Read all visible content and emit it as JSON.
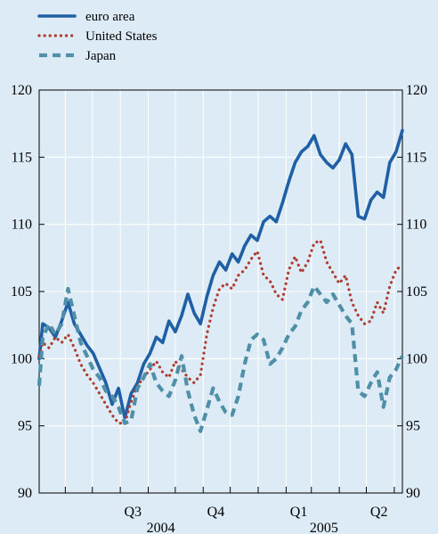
{
  "chart_data": {
    "type": "line",
    "title": "",
    "xlabel": "",
    "ylabel": "",
    "ylim": [
      90,
      120
    ],
    "yticks": [
      90,
      95,
      100,
      105,
      110,
      115,
      120
    ],
    "y_axis_sides": "both",
    "grid": true,
    "legend_placement": "top-left",
    "x_range": [
      "2004-05-03",
      "2005-06-10"
    ],
    "quarter_ticks": [
      {
        "label": "Q3",
        "date": "2004-08-15"
      },
      {
        "label": "Q4",
        "date": "2004-11-15"
      },
      {
        "label": "Q1",
        "date": "2005-02-15"
      },
      {
        "label": "Q2",
        "date": "2005-05-15"
      }
    ],
    "year_labels": [
      {
        "label": "2004",
        "date": "2004-09-15"
      },
      {
        "label": "2005",
        "date": "2005-03-15"
      }
    ],
    "series": [
      {
        "name": "euro area",
        "color": "#1f5fa6",
        "style": "solid",
        "points": [
          [
            "2004-05-03",
            100.0
          ],
          [
            "2004-05-07",
            102.6
          ],
          [
            "2004-05-14",
            102.3
          ],
          [
            "2004-05-21",
            101.6
          ],
          [
            "2004-05-28",
            102.8
          ],
          [
            "2004-06-04",
            104.2
          ],
          [
            "2004-06-11",
            102.6
          ],
          [
            "2004-06-18",
            101.8
          ],
          [
            "2004-06-25",
            101.0
          ],
          [
            "2004-07-02",
            100.4
          ],
          [
            "2004-07-09",
            99.3
          ],
          [
            "2004-07-16",
            98.2
          ],
          [
            "2004-07-23",
            96.6
          ],
          [
            "2004-07-30",
            97.8
          ],
          [
            "2004-08-06",
            95.6
          ],
          [
            "2004-08-13",
            97.4
          ],
          [
            "2004-08-20",
            98.2
          ],
          [
            "2004-08-27",
            99.6
          ],
          [
            "2004-09-03",
            100.4
          ],
          [
            "2004-09-10",
            101.6
          ],
          [
            "2004-09-17",
            101.2
          ],
          [
            "2004-09-24",
            102.8
          ],
          [
            "2004-10-01",
            102.0
          ],
          [
            "2004-10-08",
            103.2
          ],
          [
            "2004-10-15",
            104.8
          ],
          [
            "2004-10-22",
            103.4
          ],
          [
            "2004-10-29",
            102.6
          ],
          [
            "2004-11-05",
            104.6
          ],
          [
            "2004-11-12",
            106.2
          ],
          [
            "2004-11-19",
            107.2
          ],
          [
            "2004-11-26",
            106.6
          ],
          [
            "2004-12-03",
            107.8
          ],
          [
            "2004-12-10",
            107.2
          ],
          [
            "2004-12-17",
            108.4
          ],
          [
            "2004-12-24",
            109.2
          ],
          [
            "2004-12-31",
            108.8
          ],
          [
            "2005-01-07",
            110.2
          ],
          [
            "2005-01-14",
            110.6
          ],
          [
            "2005-01-21",
            110.2
          ],
          [
            "2005-01-28",
            111.6
          ],
          [
            "2005-02-04",
            113.2
          ],
          [
            "2005-02-11",
            114.6
          ],
          [
            "2005-02-18",
            115.4
          ],
          [
            "2005-02-25",
            115.8
          ],
          [
            "2005-03-04",
            116.6
          ],
          [
            "2005-03-11",
            115.2
          ],
          [
            "2005-03-18",
            114.6
          ],
          [
            "2005-03-25",
            114.2
          ],
          [
            "2005-04-01",
            114.8
          ],
          [
            "2005-04-08",
            116.0
          ],
          [
            "2005-04-15",
            115.2
          ],
          [
            "2005-04-22",
            110.6
          ],
          [
            "2005-04-29",
            110.4
          ],
          [
            "2005-05-06",
            111.8
          ],
          [
            "2005-05-13",
            112.4
          ],
          [
            "2005-05-20",
            112.0
          ],
          [
            "2005-05-27",
            114.6
          ],
          [
            "2005-06-03",
            115.4
          ],
          [
            "2005-06-10",
            117.0
          ]
        ]
      },
      {
        "name": "United States",
        "color": "#b03a2e",
        "style": "dotted",
        "points": [
          [
            "2004-05-03",
            100.2
          ],
          [
            "2004-05-07",
            101.2
          ],
          [
            "2004-05-14",
            100.8
          ],
          [
            "2004-05-21",
            101.6
          ],
          [
            "2004-05-28",
            101.2
          ],
          [
            "2004-06-04",
            101.8
          ],
          [
            "2004-06-11",
            100.8
          ],
          [
            "2004-06-18",
            99.6
          ],
          [
            "2004-06-25",
            98.8
          ],
          [
            "2004-07-02",
            98.2
          ],
          [
            "2004-07-09",
            97.4
          ],
          [
            "2004-07-16",
            96.6
          ],
          [
            "2004-07-23",
            95.8
          ],
          [
            "2004-07-30",
            95.2
          ],
          [
            "2004-08-06",
            95.2
          ],
          [
            "2004-08-13",
            96.8
          ],
          [
            "2004-08-20",
            98.0
          ],
          [
            "2004-08-27",
            98.6
          ],
          [
            "2004-09-03",
            99.2
          ],
          [
            "2004-09-10",
            99.8
          ],
          [
            "2004-09-17",
            99.0
          ],
          [
            "2004-09-24",
            98.6
          ],
          [
            "2004-10-01",
            99.8
          ],
          [
            "2004-10-08",
            99.2
          ],
          [
            "2004-10-15",
            98.6
          ],
          [
            "2004-10-22",
            98.2
          ],
          [
            "2004-10-29",
            98.8
          ],
          [
            "2004-11-05",
            101.8
          ],
          [
            "2004-11-12",
            103.8
          ],
          [
            "2004-11-19",
            105.2
          ],
          [
            "2004-11-26",
            105.6
          ],
          [
            "2004-12-03",
            105.2
          ],
          [
            "2004-12-10",
            106.2
          ],
          [
            "2004-12-17",
            106.6
          ],
          [
            "2004-12-24",
            107.4
          ],
          [
            "2004-12-31",
            108.0
          ],
          [
            "2005-01-07",
            106.2
          ],
          [
            "2005-01-14",
            105.8
          ],
          [
            "2005-01-21",
            104.8
          ],
          [
            "2005-01-28",
            104.4
          ],
          [
            "2005-02-04",
            106.6
          ],
          [
            "2005-02-11",
            107.6
          ],
          [
            "2005-02-18",
            106.4
          ],
          [
            "2005-02-25",
            107.2
          ],
          [
            "2005-03-04",
            108.6
          ],
          [
            "2005-03-11",
            108.8
          ],
          [
            "2005-03-18",
            107.2
          ],
          [
            "2005-03-25",
            106.4
          ],
          [
            "2005-04-01",
            105.6
          ],
          [
            "2005-04-08",
            106.2
          ],
          [
            "2005-04-15",
            104.2
          ],
          [
            "2005-04-22",
            103.2
          ],
          [
            "2005-04-29",
            102.6
          ],
          [
            "2005-05-06",
            102.8
          ],
          [
            "2005-05-13",
            104.2
          ],
          [
            "2005-05-20",
            103.4
          ],
          [
            "2005-05-27",
            105.4
          ],
          [
            "2005-06-03",
            106.6
          ],
          [
            "2005-06-10",
            107.0
          ]
        ]
      },
      {
        "name": "Japan",
        "color": "#4f8fa8",
        "style": "dashed",
        "points": [
          [
            "2004-05-03",
            98.0
          ],
          [
            "2004-05-07",
            101.6
          ],
          [
            "2004-05-14",
            102.6
          ],
          [
            "2004-05-21",
            101.8
          ],
          [
            "2004-05-28",
            102.6
          ],
          [
            "2004-06-04",
            105.2
          ],
          [
            "2004-06-11",
            103.2
          ],
          [
            "2004-06-18",
            101.2
          ],
          [
            "2004-06-25",
            100.2
          ],
          [
            "2004-07-02",
            99.2
          ],
          [
            "2004-07-09",
            98.6
          ],
          [
            "2004-07-16",
            97.6
          ],
          [
            "2004-07-23",
            97.2
          ],
          [
            "2004-07-30",
            96.4
          ],
          [
            "2004-08-06",
            95.2
          ],
          [
            "2004-08-13",
            95.4
          ],
          [
            "2004-08-20",
            97.8
          ],
          [
            "2004-08-27",
            98.6
          ],
          [
            "2004-09-03",
            99.6
          ],
          [
            "2004-09-10",
            98.2
          ],
          [
            "2004-09-17",
            97.6
          ],
          [
            "2004-09-24",
            97.2
          ],
          [
            "2004-10-01",
            98.4
          ],
          [
            "2004-10-08",
            100.2
          ],
          [
            "2004-10-15",
            97.6
          ],
          [
            "2004-10-22",
            95.8
          ],
          [
            "2004-10-29",
            94.6
          ],
          [
            "2004-11-05",
            96.2
          ],
          [
            "2004-11-12",
            97.8
          ],
          [
            "2004-11-19",
            96.8
          ],
          [
            "2004-11-26",
            96.0
          ],
          [
            "2004-12-03",
            95.8
          ],
          [
            "2004-12-10",
            97.2
          ],
          [
            "2004-12-17",
            99.6
          ],
          [
            "2004-12-24",
            101.4
          ],
          [
            "2004-12-31",
            101.8
          ],
          [
            "2005-01-07",
            101.4
          ],
          [
            "2005-01-14",
            99.6
          ],
          [
            "2005-01-21",
            100.0
          ],
          [
            "2005-01-28",
            100.8
          ],
          [
            "2005-02-04",
            101.8
          ],
          [
            "2005-02-11",
            102.4
          ],
          [
            "2005-02-18",
            103.6
          ],
          [
            "2005-02-25",
            104.2
          ],
          [
            "2005-03-04",
            105.4
          ],
          [
            "2005-03-11",
            104.8
          ],
          [
            "2005-03-18",
            104.2
          ],
          [
            "2005-03-25",
            104.8
          ],
          [
            "2005-04-01",
            104.0
          ],
          [
            "2005-04-08",
            103.2
          ],
          [
            "2005-04-15",
            102.6
          ],
          [
            "2005-04-22",
            97.6
          ],
          [
            "2005-04-29",
            97.2
          ],
          [
            "2005-05-06",
            98.2
          ],
          [
            "2005-05-13",
            99.0
          ],
          [
            "2005-05-20",
            96.4
          ],
          [
            "2005-05-27",
            98.6
          ],
          [
            "2005-06-03",
            99.2
          ],
          [
            "2005-06-10",
            100.2
          ]
        ]
      }
    ]
  }
}
